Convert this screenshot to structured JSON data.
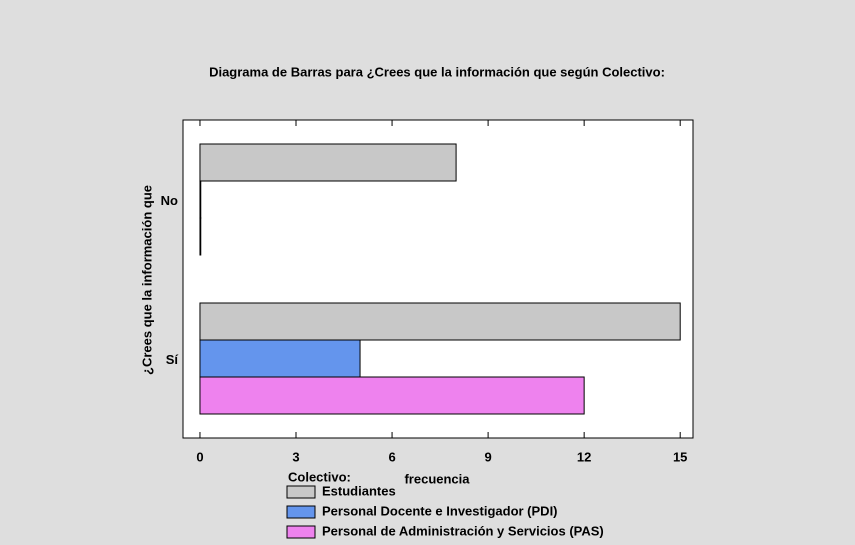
{
  "chart_data": {
    "type": "barh",
    "title": "Diagrama de Barras para ¿Crees que la información que según Colectivo:",
    "x_label": "frecuencia",
    "y_label": "¿Crees que la información que",
    "legend_title": "Colectivo:",
    "categories": [
      "No",
      "Sí"
    ],
    "series": [
      {
        "name": "Estudiantes",
        "color": "#c8c8c8",
        "values": [
          8,
          15
        ]
      },
      {
        "name": "Personal Docente e Investigador (PDI)",
        "color": "#6495ed",
        "values": [
          0,
          5
        ]
      },
      {
        "name": "Personal de Administración y Servicios (PAS)",
        "color": "#ee82ee",
        "values": [
          0,
          12
        ]
      }
    ],
    "xlim": [
      -0.53,
      15.4
    ],
    "xticks": [
      0,
      3,
      6,
      9,
      12,
      15
    ]
  }
}
